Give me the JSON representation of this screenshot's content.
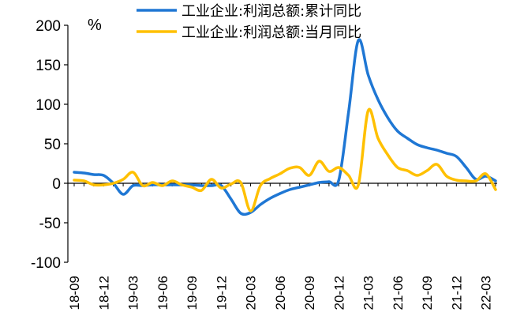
{
  "chart_data": {
    "type": "line",
    "unit_label": "%",
    "ylim": [
      -100,
      200
    ],
    "yticks": [
      -100,
      -50,
      0,
      50,
      100,
      150,
      200
    ],
    "x_tick_labels": [
      "18-09",
      "18-12",
      "19-03",
      "19-06",
      "19-09",
      "19-12",
      "20-03",
      "20-06",
      "20-09",
      "20-12",
      "21-03",
      "21-06",
      "21-09",
      "21-12",
      "22-03"
    ],
    "x_range_months": [
      "2018-09",
      "2022-04"
    ],
    "legend_position": "top",
    "grid": false,
    "series": [
      {
        "name": "工业企业:利润总额:累计同比",
        "color": "#1f77d4",
        "points": [
          [
            "2018-09",
            14
          ],
          [
            "2018-10",
            13
          ],
          [
            "2018-11",
            11
          ],
          [
            "2018-12",
            10
          ],
          [
            "2019-01",
            0
          ],
          [
            "2019-02",
            -14
          ],
          [
            "2019-03",
            -3
          ],
          [
            "2019-04",
            -3
          ],
          [
            "2019-05",
            -2
          ],
          [
            "2019-06",
            -2
          ],
          [
            "2019-07",
            -2
          ],
          [
            "2019-08",
            -2
          ],
          [
            "2019-09",
            -2
          ],
          [
            "2019-10",
            -3
          ],
          [
            "2019-11",
            -3
          ],
          [
            "2019-12",
            -3
          ],
          [
            "2020-01",
            -20
          ],
          [
            "2020-02",
            -38
          ],
          [
            "2020-03",
            -37
          ],
          [
            "2020-04",
            -27
          ],
          [
            "2020-05",
            -19
          ],
          [
            "2020-06",
            -13
          ],
          [
            "2020-07",
            -8
          ],
          [
            "2020-08",
            -5
          ],
          [
            "2020-09",
            -2
          ],
          [
            "2020-10",
            1
          ],
          [
            "2020-11",
            2
          ],
          [
            "2020-12",
            4
          ],
          [
            "2021-01",
            90
          ],
          [
            "2021-02",
            181
          ],
          [
            "2021-03",
            137
          ],
          [
            "2021-04",
            106
          ],
          [
            "2021-05",
            83
          ],
          [
            "2021-06",
            66
          ],
          [
            "2021-07",
            57
          ],
          [
            "2021-08",
            49
          ],
          [
            "2021-09",
            45
          ],
          [
            "2021-10",
            42
          ],
          [
            "2021-11",
            38
          ],
          [
            "2021-12",
            34
          ],
          [
            "2022-01",
            20
          ],
          [
            "2022-02",
            5
          ],
          [
            "2022-03",
            9
          ],
          [
            "2022-04",
            3
          ]
        ]
      },
      {
        "name": "工业企业:利润总额:当月同比",
        "color": "#ffc000",
        "points": [
          [
            "2018-09",
            4
          ],
          [
            "2018-10",
            3
          ],
          [
            "2018-11",
            -2
          ],
          [
            "2018-12",
            -2
          ],
          [
            "2019-01",
            0
          ],
          [
            "2019-02",
            5
          ],
          [
            "2019-03",
            14
          ],
          [
            "2019-04",
            -3
          ],
          [
            "2019-05",
            1
          ],
          [
            "2019-06",
            -3
          ],
          [
            "2019-07",
            3
          ],
          [
            "2019-08",
            -2
          ],
          [
            "2019-09",
            -5
          ],
          [
            "2019-10",
            -9
          ],
          [
            "2019-11",
            5
          ],
          [
            "2019-12",
            -6
          ],
          [
            "2020-01",
            -1
          ],
          [
            "2020-02",
            1
          ],
          [
            "2020-03",
            -35
          ],
          [
            "2020-04",
            -3
          ],
          [
            "2020-05",
            6
          ],
          [
            "2020-06",
            12
          ],
          [
            "2020-07",
            19
          ],
          [
            "2020-08",
            20
          ],
          [
            "2020-09",
            10
          ],
          [
            "2020-10",
            28
          ],
          [
            "2020-11",
            15
          ],
          [
            "2020-12",
            20
          ],
          [
            "2021-01",
            10
          ],
          [
            "2021-02",
            -2
          ],
          [
            "2021-03",
            92
          ],
          [
            "2021-04",
            57
          ],
          [
            "2021-05",
            36
          ],
          [
            "2021-06",
            20
          ],
          [
            "2021-07",
            16
          ],
          [
            "2021-08",
            10
          ],
          [
            "2021-09",
            16
          ],
          [
            "2021-10",
            24
          ],
          [
            "2021-11",
            9
          ],
          [
            "2021-12",
            4
          ],
          [
            "2022-01",
            3
          ],
          [
            "2022-02",
            3
          ],
          [
            "2022-03",
            12
          ],
          [
            "2022-04",
            -8
          ]
        ]
      }
    ]
  }
}
